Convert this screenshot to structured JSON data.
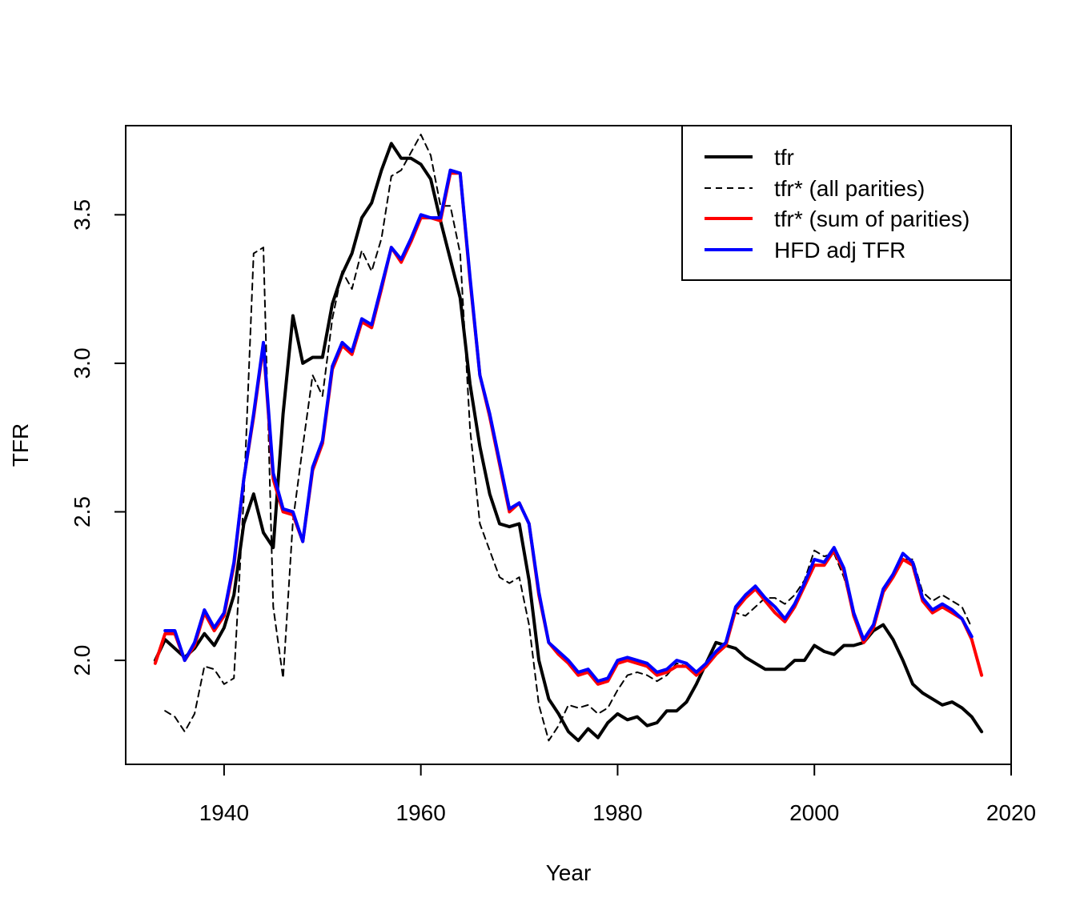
{
  "chart_data": {
    "type": "line",
    "title": "",
    "xlabel": "Year",
    "ylabel": "TFR",
    "xlim": [
      1930,
      2020
    ],
    "ylim": [
      1.65,
      3.8
    ],
    "xticks": [
      "1940",
      "1960",
      "1980",
      "2000",
      "2020"
    ],
    "yticks": [
      "2.0",
      "2.5",
      "3.0",
      "3.5"
    ],
    "grid": false,
    "legend_position": "top-right",
    "series": [
      {
        "name": "tfr",
        "color": "#000000",
        "style": "solid-thick",
        "x": [
          1933,
          1934,
          1935,
          1936,
          1937,
          1938,
          1939,
          1940,
          1941,
          1942,
          1943,
          1944,
          1945,
          1946,
          1947,
          1948,
          1949,
          1950,
          1951,
          1952,
          1953,
          1954,
          1955,
          1956,
          1957,
          1958,
          1959,
          1960,
          1961,
          1962,
          1963,
          1964,
          1965,
          1966,
          1967,
          1968,
          1969,
          1970,
          1971,
          1972,
          1973,
          1974,
          1975,
          1976,
          1977,
          1978,
          1979,
          1980,
          1981,
          1982,
          1983,
          1984,
          1985,
          1986,
          1987,
          1988,
          1989,
          1990,
          1991,
          1992,
          1993,
          1994,
          1995,
          1996,
          1997,
          1998,
          1999,
          2000,
          2001,
          2002,
          2003,
          2004,
          2005,
          2006,
          2007,
          2008,
          2009,
          2010,
          2011,
          2012,
          2013,
          2014,
          2015,
          2016,
          2017
        ],
        "y": [
          2.0,
          2.07,
          2.04,
          2.01,
          2.04,
          2.09,
          2.05,
          2.11,
          2.22,
          2.46,
          2.56,
          2.43,
          2.38,
          2.83,
          3.16,
          3.0,
          3.02,
          3.02,
          3.2,
          3.3,
          3.37,
          3.49,
          3.54,
          3.65,
          3.74,
          3.69,
          3.69,
          3.67,
          3.62,
          3.48,
          3.35,
          3.22,
          2.93,
          2.72,
          2.56,
          2.46,
          2.45,
          2.46,
          2.27,
          2.0,
          1.87,
          1.82,
          1.76,
          1.73,
          1.77,
          1.74,
          1.79,
          1.82,
          1.8,
          1.81,
          1.78,
          1.79,
          1.83,
          1.83,
          1.86,
          1.92,
          1.99,
          2.06,
          2.05,
          2.04,
          2.01,
          1.99,
          1.97,
          1.97,
          1.97,
          2.0,
          2.0,
          2.05,
          2.03,
          2.02,
          2.05,
          2.05,
          2.06,
          2.1,
          2.12,
          2.07,
          2.0,
          1.92,
          1.89,
          1.87,
          1.85,
          1.86,
          1.84,
          1.81,
          1.76
        ]
      },
      {
        "name": "tfr* (all parities)",
        "color": "#000000",
        "style": "dashed",
        "x": [
          1934,
          1935,
          1936,
          1937,
          1938,
          1939,
          1940,
          1941,
          1942,
          1943,
          1944,
          1945,
          1946,
          1947,
          1948,
          1949,
          1950,
          1951,
          1952,
          1953,
          1954,
          1955,
          1956,
          1957,
          1958,
          1959,
          1960,
          1961,
          1962,
          1963,
          1964,
          1965,
          1966,
          1967,
          1968,
          1969,
          1970,
          1971,
          1972,
          1973,
          1974,
          1975,
          1976,
          1977,
          1978,
          1979,
          1980,
          1981,
          1982,
          1983,
          1984,
          1985,
          1986,
          1987,
          1988,
          1989,
          1990,
          1991,
          1992,
          1993,
          1994,
          1995,
          1996,
          1997,
          1998,
          1999,
          2000,
          2001,
          2002,
          2003,
          2004,
          2005,
          2006,
          2007,
          2008,
          2009,
          2010,
          2011,
          2012,
          2013,
          2014,
          2015,
          2016
        ],
        "y": [
          1.83,
          1.81,
          1.76,
          1.82,
          1.98,
          1.97,
          1.92,
          1.94,
          2.55,
          3.37,
          3.39,
          2.18,
          1.94,
          2.47,
          2.72,
          2.96,
          2.89,
          3.15,
          3.31,
          3.25,
          3.38,
          3.31,
          3.42,
          3.63,
          3.65,
          3.71,
          3.77,
          3.7,
          3.53,
          3.53,
          3.37,
          2.78,
          2.46,
          2.37,
          2.28,
          2.26,
          2.28,
          2.12,
          1.85,
          1.73,
          1.78,
          1.85,
          1.84,
          1.85,
          1.82,
          1.84,
          1.9,
          1.95,
          1.96,
          1.95,
          1.93,
          1.95,
          1.99,
          1.98,
          1.95,
          1.99,
          2.03,
          2.06,
          2.16,
          2.15,
          2.18,
          2.21,
          2.21,
          2.19,
          2.22,
          2.27,
          2.37,
          2.35,
          2.36,
          2.28,
          2.16,
          2.06,
          2.1,
          2.23,
          2.28,
          2.34,
          2.34,
          2.23,
          2.2,
          2.22,
          2.2,
          2.18,
          2.11
        ]
      },
      {
        "name": "tfr* (sum of parities)",
        "color": "#ff0000",
        "style": "solid-thick",
        "x": [
          1933,
          1934,
          1935,
          1936,
          1937,
          1938,
          1939,
          1940,
          1941,
          1942,
          1943,
          1944,
          1945,
          1946,
          1947,
          1948,
          1949,
          1950,
          1951,
          1952,
          1953,
          1954,
          1955,
          1956,
          1957,
          1958,
          1959,
          1960,
          1961,
          1962,
          1963,
          1964,
          1965,
          1966,
          1967,
          1968,
          1969,
          1970,
          1971,
          1972,
          1973,
          1974,
          1975,
          1976,
          1977,
          1978,
          1979,
          1980,
          1981,
          1982,
          1983,
          1984,
          1985,
          1986,
          1987,
          1988,
          1989,
          1990,
          1991,
          1992,
          1993,
          1994,
          1995,
          1996,
          1997,
          1998,
          1999,
          2000,
          2001,
          2002,
          2003,
          2004,
          2005,
          2006,
          2007,
          2008,
          2009,
          2010,
          2011,
          2012,
          2013,
          2014,
          2015,
          2016,
          2017
        ],
        "y": [
          1.99,
          2.09,
          2.09,
          2.0,
          2.05,
          2.16,
          2.1,
          2.15,
          2.32,
          2.61,
          2.82,
          3.06,
          2.61,
          2.5,
          2.49,
          2.4,
          2.64,
          2.73,
          2.98,
          3.06,
          3.03,
          3.14,
          3.12,
          3.25,
          3.39,
          3.34,
          3.41,
          3.49,
          3.49,
          3.48,
          3.64,
          3.64,
          3.28,
          2.96,
          2.82,
          2.66,
          2.5,
          2.53,
          2.46,
          2.22,
          2.06,
          2.02,
          1.99,
          1.95,
          1.96,
          1.92,
          1.93,
          1.99,
          2.0,
          1.99,
          1.98,
          1.95,
          1.96,
          1.98,
          1.98,
          1.95,
          1.98,
          2.02,
          2.05,
          2.17,
          2.21,
          2.24,
          2.2,
          2.16,
          2.13,
          2.18,
          2.25,
          2.32,
          2.32,
          2.37,
          2.3,
          2.15,
          2.06,
          2.11,
          2.23,
          2.28,
          2.34,
          2.32,
          2.2,
          2.16,
          2.18,
          2.16,
          2.14,
          2.07,
          1.95
        ]
      },
      {
        "name": "HFD adj TFR",
        "color": "#0000ff",
        "style": "solid-thick",
        "x": [
          1934,
          1935,
          1936,
          1937,
          1938,
          1939,
          1940,
          1941,
          1942,
          1943,
          1944,
          1945,
          1946,
          1947,
          1948,
          1949,
          1950,
          1951,
          1952,
          1953,
          1954,
          1955,
          1956,
          1957,
          1958,
          1959,
          1960,
          1961,
          1962,
          1963,
          1964,
          1965,
          1966,
          1967,
          1968,
          1969,
          1970,
          1971,
          1972,
          1973,
          1974,
          1975,
          1976,
          1977,
          1978,
          1979,
          1980,
          1981,
          1982,
          1983,
          1984,
          1985,
          1986,
          1987,
          1988,
          1989,
          1990,
          1991,
          1992,
          1993,
          1994,
          1995,
          1996,
          1997,
          1998,
          1999,
          2000,
          2001,
          2002,
          2003,
          2004,
          2005,
          2006,
          2007,
          2008,
          2009,
          2010,
          2011,
          2012,
          2013,
          2014,
          2015,
          2016
        ],
        "y": [
          2.1,
          2.1,
          2.0,
          2.06,
          2.17,
          2.11,
          2.16,
          2.33,
          2.61,
          2.83,
          3.07,
          2.63,
          2.51,
          2.5,
          2.4,
          2.65,
          2.74,
          2.99,
          3.07,
          3.04,
          3.15,
          3.13,
          3.26,
          3.39,
          3.35,
          3.42,
          3.5,
          3.49,
          3.49,
          3.65,
          3.64,
          3.29,
          2.96,
          2.83,
          2.67,
          2.51,
          2.53,
          2.46,
          2.23,
          2.06,
          2.03,
          2.0,
          1.96,
          1.97,
          1.93,
          1.94,
          2.0,
          2.01,
          2.0,
          1.99,
          1.96,
          1.97,
          2.0,
          1.99,
          1.96,
          1.99,
          2.03,
          2.06,
          2.18,
          2.22,
          2.25,
          2.21,
          2.18,
          2.14,
          2.19,
          2.26,
          2.34,
          2.33,
          2.38,
          2.31,
          2.16,
          2.07,
          2.12,
          2.24,
          2.29,
          2.36,
          2.33,
          2.21,
          2.17,
          2.19,
          2.17,
          2.14,
          2.08
        ]
      }
    ]
  }
}
